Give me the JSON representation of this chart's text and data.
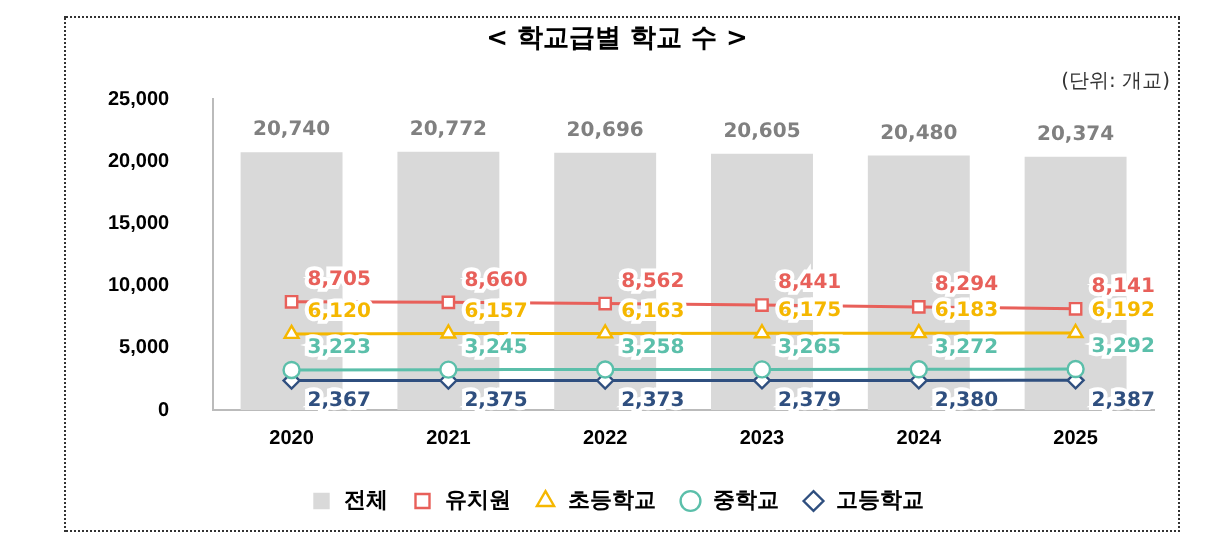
{
  "chart_data": {
    "type": "bar",
    "title": "< 학교급별 학교 수 >",
    "annotations": [
      "(단위: 개교)"
    ],
    "categories": [
      "2020",
      "2021",
      "2022",
      "2023",
      "2024",
      "2025"
    ],
    "series": [
      {
        "name": "전체",
        "color": "#d9d9d9",
        "values": [
          20740,
          20772,
          20696,
          20605,
          20480,
          20374
        ],
        "value_labels": [
          "20,740",
          "20,772",
          "20,696",
          "20,605",
          "20,480",
          "20,374"
        ]
      },
      {
        "name": "유치원",
        "type": "line",
        "marker": "square",
        "color": "#e8605a",
        "values": [
          8705,
          8660,
          8562,
          8441,
          8294,
          8141
        ],
        "value_labels": [
          "8,705",
          "8,660",
          "8,562",
          "8,441",
          "8,294",
          "8,141"
        ]
      },
      {
        "name": "초등학교",
        "type": "line",
        "marker": "triangle",
        "color": "#f5b700",
        "values": [
          6120,
          6157,
          6163,
          6175,
          6183,
          6192
        ],
        "value_labels": [
          "6,120",
          "6,157",
          "6,163",
          "6,175",
          "6,183",
          "6,192"
        ]
      },
      {
        "name": "중학교",
        "type": "line",
        "marker": "circle",
        "color": "#5bbfaa",
        "values": [
          3223,
          3245,
          3258,
          3265,
          3272,
          3292
        ],
        "value_labels": [
          "3,223",
          "3,245",
          "3,258",
          "3,265",
          "3,272",
          "3,292"
        ]
      },
      {
        "name": "고등학교",
        "type": "line",
        "marker": "diamond",
        "color": "#2f4f7f",
        "values": [
          2367,
          2375,
          2373,
          2379,
          2380,
          2387
        ],
        "value_labels": [
          "2,367",
          "2,375",
          "2,373",
          "2,379",
          "2,380",
          "2,387"
        ]
      }
    ],
    "ylim": [
      0,
      25000
    ],
    "yticks": [
      0,
      {
        "value": 5000,
        "label": "5,000"
      },
      {
        "value": 10000,
        "label": "10,000"
      },
      {
        "value": 15000,
        "label": "15,000"
      },
      {
        "value": 20000,
        "label": "20,000"
      },
      {
        "value": 25000,
        "label": "25,000"
      }
    ],
    "grid": false,
    "legend": "bottom"
  }
}
